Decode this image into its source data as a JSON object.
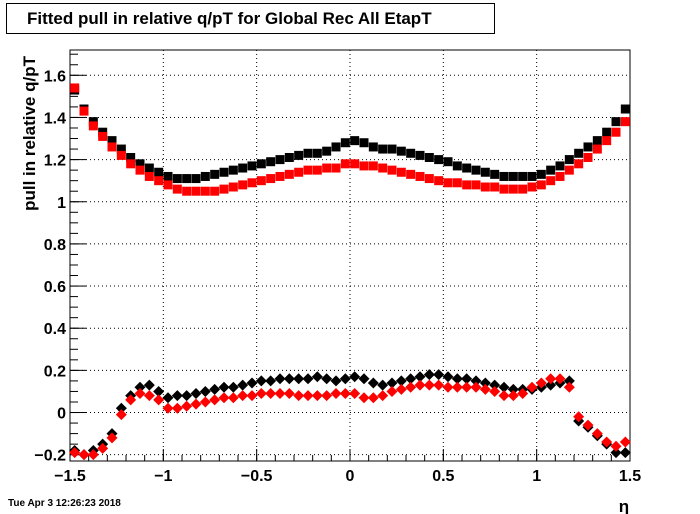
{
  "chart_data": {
    "type": "scatter",
    "title": "Fitted pull in relative q/pT for Global Rec All EtapT",
    "xlabel": "η",
    "ylabel": "pull in relative q/pT",
    "xlim": [
      -1.5,
      1.5
    ],
    "ylim": [
      -0.23,
      1.72
    ],
    "xticks": [
      -1.5,
      -1,
      -0.5,
      0,
      0.5,
      1,
      1.5
    ],
    "xtick_labels": [
      "−1.5",
      "−1",
      "−0.5",
      "0",
      "0.5",
      "1",
      "1.5"
    ],
    "yticks": [
      -0.2,
      0,
      0.2,
      0.4,
      0.6,
      0.8,
      1,
      1.2,
      1.4,
      1.6
    ],
    "ytick_labels": [
      "−0.2",
      "0",
      "0.2",
      "0.4",
      "0.6",
      "0.8",
      "1",
      "1.2",
      "1.4",
      "1.6"
    ],
    "grid": true,
    "x": [
      -1.475,
      -1.425,
      -1.375,
      -1.325,
      -1.275,
      -1.225,
      -1.175,
      -1.125,
      -1.075,
      -1.025,
      -0.975,
      -0.925,
      -0.875,
      -0.825,
      -0.775,
      -0.725,
      -0.675,
      -0.625,
      -0.575,
      -0.525,
      -0.475,
      -0.425,
      -0.375,
      -0.325,
      -0.275,
      -0.225,
      -0.175,
      -0.125,
      -0.075,
      -0.025,
      0.025,
      0.075,
      0.125,
      0.175,
      0.225,
      0.275,
      0.325,
      0.375,
      0.425,
      0.475,
      0.525,
      0.575,
      0.625,
      0.675,
      0.725,
      0.775,
      0.825,
      0.875,
      0.925,
      0.975,
      1.025,
      1.075,
      1.125,
      1.175,
      1.225,
      1.275,
      1.325,
      1.375,
      1.425,
      1.475
    ],
    "series": [
      {
        "marker": "square",
        "color": "#000000",
        "values": [
          1.53,
          1.44,
          1.38,
          1.33,
          1.29,
          1.25,
          1.21,
          1.18,
          1.16,
          1.14,
          1.12,
          1.11,
          1.11,
          1.11,
          1.12,
          1.13,
          1.14,
          1.15,
          1.16,
          1.17,
          1.18,
          1.19,
          1.2,
          1.21,
          1.22,
          1.23,
          1.23,
          1.24,
          1.26,
          1.28,
          1.29,
          1.28,
          1.26,
          1.25,
          1.25,
          1.24,
          1.23,
          1.22,
          1.21,
          1.2,
          1.19,
          1.17,
          1.16,
          1.15,
          1.14,
          1.13,
          1.12,
          1.12,
          1.12,
          1.12,
          1.13,
          1.15,
          1.17,
          1.2,
          1.23,
          1.26,
          1.29,
          1.33,
          1.38,
          1.44
        ]
      },
      {
        "marker": "square",
        "color": "#ff0000",
        "values": [
          1.54,
          1.43,
          1.36,
          1.31,
          1.26,
          1.22,
          1.18,
          1.15,
          1.12,
          1.1,
          1.08,
          1.06,
          1.05,
          1.05,
          1.05,
          1.05,
          1.06,
          1.07,
          1.08,
          1.09,
          1.1,
          1.11,
          1.12,
          1.13,
          1.14,
          1.15,
          1.15,
          1.16,
          1.16,
          1.18,
          1.18,
          1.17,
          1.17,
          1.16,
          1.15,
          1.14,
          1.13,
          1.12,
          1.11,
          1.1,
          1.09,
          1.09,
          1.08,
          1.08,
          1.07,
          1.07,
          1.06,
          1.06,
          1.06,
          1.07,
          1.08,
          1.1,
          1.12,
          1.15,
          1.18,
          1.21,
          1.25,
          1.29,
          1.33,
          1.38
        ]
      },
      {
        "marker": "diamond",
        "color": "#000000",
        "values": [
          -0.18,
          -0.2,
          -0.18,
          -0.15,
          -0.1,
          0.02,
          0.08,
          0.12,
          0.13,
          0.1,
          0.07,
          0.08,
          0.08,
          0.09,
          0.1,
          0.11,
          0.12,
          0.12,
          0.13,
          0.14,
          0.15,
          0.15,
          0.16,
          0.16,
          0.16,
          0.16,
          0.17,
          0.16,
          0.15,
          0.16,
          0.17,
          0.16,
          0.14,
          0.13,
          0.14,
          0.15,
          0.16,
          0.17,
          0.18,
          0.18,
          0.17,
          0.16,
          0.16,
          0.15,
          0.14,
          0.13,
          0.12,
          0.11,
          0.11,
          0.11,
          0.12,
          0.13,
          0.14,
          0.15,
          -0.04,
          -0.07,
          -0.11,
          -0.15,
          -0.19,
          -0.19
        ]
      },
      {
        "marker": "diamond",
        "color": "#ff0000",
        "values": [
          -0.19,
          -0.2,
          -0.2,
          -0.17,
          -0.12,
          -0.01,
          0.06,
          0.09,
          0.08,
          0.06,
          0.02,
          0.02,
          0.03,
          0.04,
          0.05,
          0.06,
          0.07,
          0.07,
          0.08,
          0.08,
          0.09,
          0.09,
          0.09,
          0.09,
          0.08,
          0.08,
          0.08,
          0.08,
          0.09,
          0.09,
          0.09,
          0.07,
          0.07,
          0.08,
          0.1,
          0.11,
          0.12,
          0.13,
          0.13,
          0.13,
          0.12,
          0.12,
          0.12,
          0.12,
          0.11,
          0.1,
          0.08,
          0.08,
          0.09,
          0.12,
          0.14,
          0.16,
          0.16,
          0.12,
          -0.02,
          -0.06,
          -0.1,
          -0.14,
          -0.16,
          -0.14
        ]
      }
    ]
  },
  "timestamp": "Tue Apr  3 12:26:23 2018"
}
